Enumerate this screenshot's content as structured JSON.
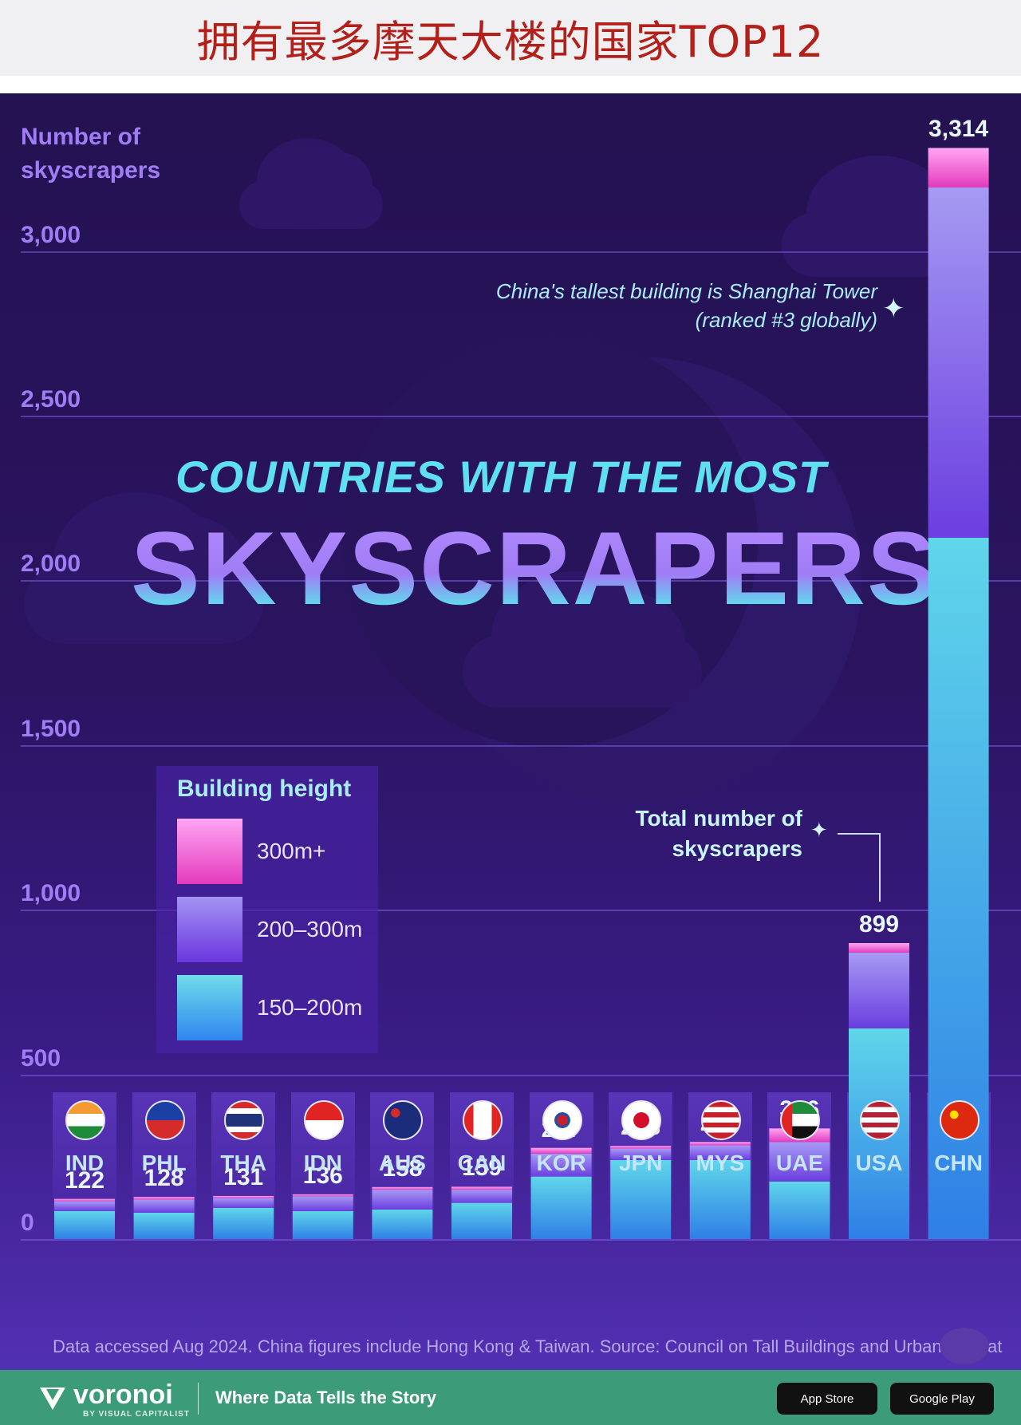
{
  "header": {
    "title": "拥有最多摩天大楼的国家TOP12"
  },
  "chart_data": {
    "type": "bar",
    "title": "COUNTRIES WITH THE MOST",
    "subtitle": "SKYSCRAPERS",
    "ylabel": "Number of skyscrapers",
    "xlabel": "",
    "ylim": [
      0,
      3314
    ],
    "yticks": [
      {
        "value": 3000,
        "label": "3,000"
      },
      {
        "value": 2500,
        "label": "2,500"
      },
      {
        "value": 2000,
        "label": "2,000"
      },
      {
        "value": 1500,
        "label": "1,500"
      },
      {
        "value": 1000,
        "label": "1,000"
      },
      {
        "value": 500,
        "label": "500"
      },
      {
        "value": 0,
        "label": "0"
      }
    ],
    "grid": true,
    "legend_title": "Building height",
    "legend_position": "left-middle",
    "categories": [
      "IND",
      "PHL",
      "THA",
      "IDN",
      "AUS",
      "CAN",
      "KOR",
      "JPN",
      "MYS",
      "UAE",
      "USA",
      "CHN"
    ],
    "totals": [
      122,
      128,
      131,
      136,
      158,
      159,
      277,
      283,
      295,
      336,
      899,
      3314
    ],
    "total_labels": [
      "122",
      "128",
      "131",
      "136",
      "158",
      "159",
      "277",
      "283",
      "295",
      "336",
      "899",
      "3,314"
    ],
    "series": [
      {
        "name": "150-200m",
        "color": "#5fd6ea",
        "values": [
          85,
          80,
          95,
          85,
          90,
          110,
          190,
          240,
          240,
          175,
          640,
          2130
        ]
      },
      {
        "name": "200-300m",
        "color": "#9a7cf0",
        "values": [
          30,
          40,
          30,
          45,
          60,
          40,
          70,
          35,
          45,
          120,
          230,
          1064
        ]
      },
      {
        "name": "300m+",
        "color": "#ff7ee3",
        "values": [
          7,
          8,
          6,
          6,
          8,
          9,
          17,
          8,
          10,
          41,
          29,
          120
        ]
      }
    ],
    "annotations": [
      {
        "text": "China's tallest building is Shanghai Tower (ranked #3 globally)",
        "target": "CHN"
      },
      {
        "text": "Total number of skyscrapers",
        "target": "USA"
      }
    ]
  },
  "annotation_text": "China's tallest building is Shanghai Tower (ranked #3 globally)",
  "callout_text": "Total number of skyscrapers",
  "legend": {
    "title": "Building height",
    "items": [
      {
        "label": "300m+",
        "color_top": "#ffa6f3",
        "color_bottom": "#e33bbd"
      },
      {
        "label": "200–300m",
        "color_top": "#a394f3",
        "color_bottom": "#6b36e0"
      },
      {
        "label": "150–200m",
        "color_top": "#6fdce9",
        "color_bottom": "#2f86f0"
      }
    ]
  },
  "flags": [
    "India",
    "Philippines",
    "Thailand",
    "Indonesia",
    "Australia",
    "Canada",
    "South Korea",
    "Japan",
    "Malaysia",
    "United Arab Emirates",
    "United States",
    "China"
  ],
  "source": "Data accessed Aug 2024. China figures include Hong Kong & Taiwan. Source: Council on Tall Buildings and Urban Habitat",
  "footer": {
    "brand": "voronoi",
    "brand_sub": "BY VISUAL CAPITALIST",
    "tagline": "Where Data Tells the Story",
    "app_store": "App Store",
    "google_play": "Google Play"
  },
  "colors": {
    "background_top": "#241252",
    "background_bottom": "#5230b3",
    "axis_text": "#a07cf5",
    "title_cyan": "#5fe0f0",
    "footer_green": "#3c9b78",
    "header_red": "#b3201a"
  }
}
